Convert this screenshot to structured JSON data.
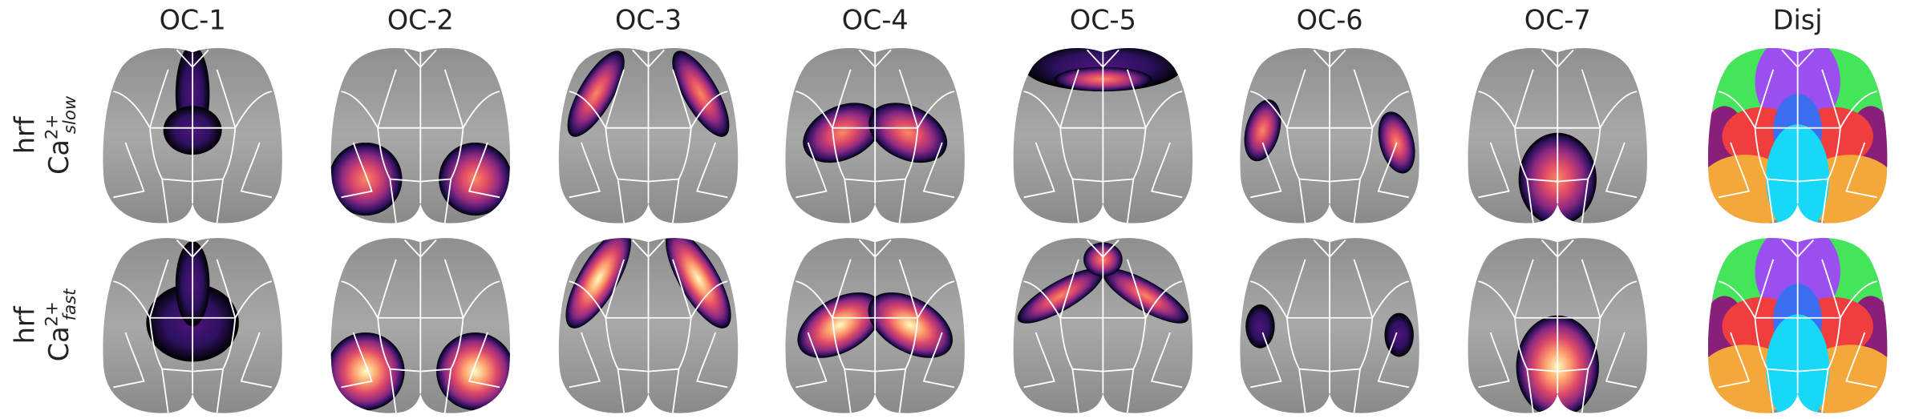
{
  "columns": [
    "OC-1",
    "OC-2",
    "OC-3",
    "OC-4",
    "OC-5",
    "OC-6",
    "OC-7",
    "Disj"
  ],
  "rows": [
    {
      "label": "hrf",
      "ion": "Ca",
      "charge": "2+",
      "subscript": "slow"
    },
    {
      "label": "hrf",
      "ion": "Ca",
      "charge": "2+",
      "subscript": "fast"
    }
  ]
}
